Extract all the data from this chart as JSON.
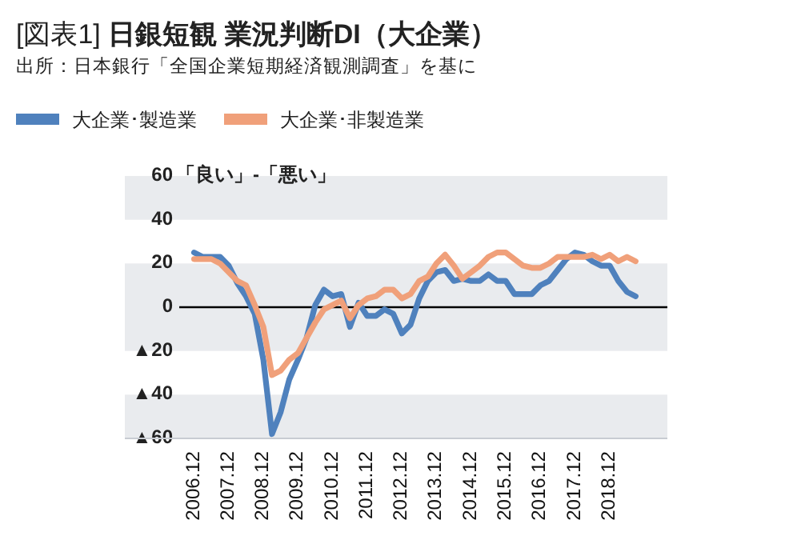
{
  "chart_data": {
    "type": "line",
    "title": "[図表1] **日銀短観 業況判断DI（大企業）**",
    "subtitle": "出所：日本銀行「全国企業短期経済観測調査」を基に",
    "ylabel": "「良い」-「悪い」",
    "legend": "top left",
    "x": [
      "2006-12",
      "2007-03",
      "2007-06",
      "2007-09",
      "2007-12",
      "2008-03",
      "2008-06",
      "2008-09",
      "2008-12",
      "2009-03",
      "2009-06",
      "2009-09",
      "2009-12",
      "2010-03",
      "2010-06",
      "2010-09",
      "2010-12",
      "2011-03",
      "2011-06",
      "2011-09",
      "2011-12",
      "2012-03",
      "2012-06",
      "2012-09",
      "2012-12",
      "2013-03",
      "2013-06",
      "2013-09",
      "2013-12",
      "2014-03",
      "2014-06",
      "2014-09",
      "2014-12",
      "2015-03",
      "2015-06",
      "2015-09",
      "2015-12",
      "2016-03",
      "2016-06",
      "2016-09",
      "2016-12",
      "2017-03",
      "2017-06",
      "2017-09",
      "2017-12",
      "2018-03",
      "2018-06",
      "2018-09",
      "2018-12",
      "2019-03",
      "2019-06",
      "2019-09"
    ],
    "series": [
      {
        "name": "大企業･製造業",
        "color": "#4f81bd",
        "values": [
          25,
          23,
          23,
          23,
          19,
          11,
          5,
          -3,
          -24,
          -58,
          -48,
          -33,
          -24,
          -14,
          1,
          8,
          5,
          6,
          -9,
          2,
          -4,
          -4,
          -1,
          -3,
          -12,
          -8,
          4,
          12,
          16,
          17,
          12,
          13,
          12,
          12,
          15,
          12,
          12,
          6,
          6,
          6,
          10,
          12,
          17,
          22,
          25,
          24,
          21,
          19,
          19,
          12,
          7,
          5
        ]
      },
      {
        "name": "大企業･非製造業",
        "color": "#f0a07a",
        "values": [
          22,
          22,
          22,
          20,
          16,
          12,
          10,
          1,
          -9,
          -31,
          -29,
          -24,
          -21,
          -14,
          -7,
          -1,
          1,
          3,
          -5,
          1,
          4,
          5,
          8,
          8,
          4,
          6,
          12,
          14,
          20,
          24,
          19,
          13,
          16,
          19,
          23,
          25,
          25,
          22,
          19,
          18,
          18,
          20,
          23,
          23,
          23,
          23,
          24,
          22,
          24,
          21,
          23,
          21
        ]
      }
    ],
    "xlim": [
      "2004-12",
      "2020-08"
    ],
    "xticks": [
      {
        "value": "2006-12",
        "label": "2006.12"
      },
      {
        "value": "2007-12",
        "label": "2007.12"
      },
      {
        "value": "2008-12",
        "label": "2008.12"
      },
      {
        "value": "2009-12",
        "label": "2009.12"
      },
      {
        "value": "2010-12",
        "label": "2010.12"
      },
      {
        "value": "2011-12",
        "label": "2011.12"
      },
      {
        "value": "2012-12",
        "label": "2012.12"
      },
      {
        "value": "2013-12",
        "label": "2013.12"
      },
      {
        "value": "2014-12",
        "label": "2014.12"
      },
      {
        "value": "2015-12",
        "label": "2015.12"
      },
      {
        "value": "2016-12",
        "label": "2016.12"
      },
      {
        "value": "2017-12",
        "label": "2017.12"
      },
      {
        "value": "2018-12",
        "label": "2018.12"
      }
    ],
    "ylim": [
      -60,
      60
    ],
    "yticks": [
      60,
      40,
      20,
      0,
      {
        "value": -20,
        "label": "▲20"
      },
      {
        "value": -40,
        "label": "▲40"
      },
      {
        "value": -60,
        "label": "▲60"
      }
    ],
    "bands": [
      {
        "axis": "y",
        "from": 40,
        "to": 60,
        "color": "#e9ebee"
      },
      {
        "axis": "y",
        "from": -20,
        "to": 20,
        "color": "#e9ebee"
      },
      {
        "axis": "y",
        "from": -60,
        "to": -40,
        "color": "#e9ebee"
      }
    ],
    "ref_lines": [
      {
        "axis": "y",
        "value": 0,
        "color": "#000000"
      }
    ],
    "grid": false,
    "marker": "none",
    "line_style": "solid"
  }
}
